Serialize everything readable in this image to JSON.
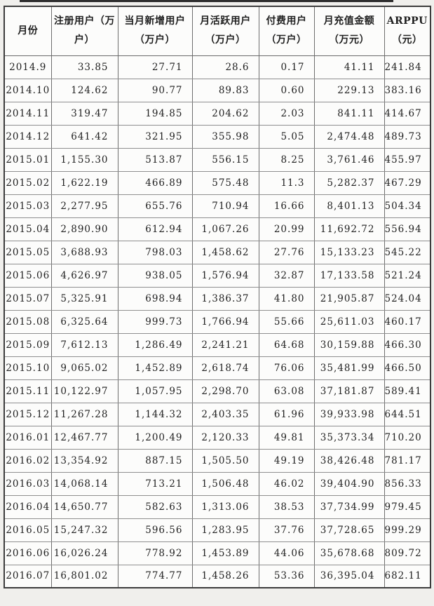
{
  "colors": {
    "page_background": "#f0efec",
    "cell_background": "#fcfcfb",
    "outer_border": "#3c3c3c",
    "vertical_border": "#6e6e6e",
    "horizontal_border": "#8f8f8f",
    "text": "#1f1f1f",
    "top_strip": "#2e2e2e"
  },
  "table": {
    "columns": [
      {
        "id": "month",
        "lines": [
          "月份"
        ]
      },
      {
        "id": "registered_users",
        "lines": [
          "注册用户（万",
          "户）"
        ]
      },
      {
        "id": "new_users",
        "lines": [
          "当月新增用户",
          "（万户）"
        ]
      },
      {
        "id": "active_users",
        "lines": [
          "月活跃用户",
          "（万户）"
        ]
      },
      {
        "id": "paying_users",
        "lines": [
          "付费用户",
          "（万户）"
        ]
      },
      {
        "id": "recharge_amount",
        "lines": [
          "月充值金额",
          "（万元）"
        ]
      },
      {
        "id": "arppu",
        "lines": [
          "ARPPU",
          "（元）"
        ]
      }
    ],
    "rows": [
      [
        "2014.9",
        "33.85",
        "27.71",
        "28.6",
        "0.17",
        "41.11",
        "241.84"
      ],
      [
        "2014.10",
        "124.62",
        "90.77",
        "89.83",
        "0.60",
        "229.13",
        "383.16"
      ],
      [
        "2014.11",
        "319.47",
        "194.85",
        "204.62",
        "2.03",
        "841.11",
        "414.67"
      ],
      [
        "2014.12",
        "641.42",
        "321.95",
        "355.98",
        "5.05",
        "2,474.48",
        "489.73"
      ],
      [
        "2015.01",
        "1,155.30",
        "513.87",
        "556.15",
        "8.25",
        "3,761.46",
        "455.97"
      ],
      [
        "2015.02",
        "1,622.19",
        "466.89",
        "575.48",
        "11.3",
        "5,282.37",
        "467.29"
      ],
      [
        "2015.03",
        "2,277.95",
        "655.76",
        "710.94",
        "16.66",
        "8,401.13",
        "504.34"
      ],
      [
        "2015.04",
        "2,890.90",
        "612.94",
        "1,067.26",
        "20.99",
        "11,692.72",
        "556.94"
      ],
      [
        "2015.05",
        "3,688.93",
        "798.03",
        "1,458.62",
        "27.76",
        "15,133.23",
        "545.22"
      ],
      [
        "2015.06",
        "4,626.97",
        "938.05",
        "1,576.94",
        "32.87",
        "17,133.58",
        "521.24"
      ],
      [
        "2015.07",
        "5,325.91",
        "698.94",
        "1,386.37",
        "41.80",
        "21,905.87",
        "524.04"
      ],
      [
        "2015.08",
        "6,325.64",
        "999.73",
        "1,766.94",
        "55.66",
        "25,611.03",
        "460.17"
      ],
      [
        "2015.09",
        "7,612.13",
        "1,286.49",
        "2,241.21",
        "64.68",
        "30,159.88",
        "466.30"
      ],
      [
        "2015.10",
        "9,065.02",
        "1,452.89",
        "2,618.74",
        "76.06",
        "35,481.99",
        "466.50"
      ],
      [
        "2015.11",
        "10,122.97",
        "1,057.95",
        "2,298.70",
        "63.08",
        "37,181.87",
        "589.41"
      ],
      [
        "2015.12",
        "11,267.28",
        "1,144.32",
        "2,403.35",
        "61.96",
        "39,933.98",
        "644.51"
      ],
      [
        "2016.01",
        "12,467.77",
        "1,200.49",
        "2,120.33",
        "49.81",
        "35,373.34",
        "710.20"
      ],
      [
        "2016.02",
        "13,354.92",
        "887.15",
        "1,505.50",
        "49.19",
        "38,426.48",
        "781.17"
      ],
      [
        "2016.03",
        "14,068.14",
        "713.21",
        "1,506.48",
        "46.02",
        "39,404.90",
        "856.33"
      ],
      [
        "2016.04",
        "14,650.77",
        "582.63",
        "1,313.06",
        "38.53",
        "37,734.99",
        "979.45"
      ],
      [
        "2016.05",
        "15,247.32",
        "596.56",
        "1,283.95",
        "37.76",
        "37,728.65",
        "999.29"
      ],
      [
        "2016.06",
        "16,026.24",
        "778.92",
        "1,453.89",
        "44.06",
        "35,678.68",
        "809.72"
      ],
      [
        "2016.07",
        "16,801.02",
        "774.77",
        "1,458.26",
        "53.36",
        "36,395.04",
        "682.11"
      ]
    ]
  }
}
